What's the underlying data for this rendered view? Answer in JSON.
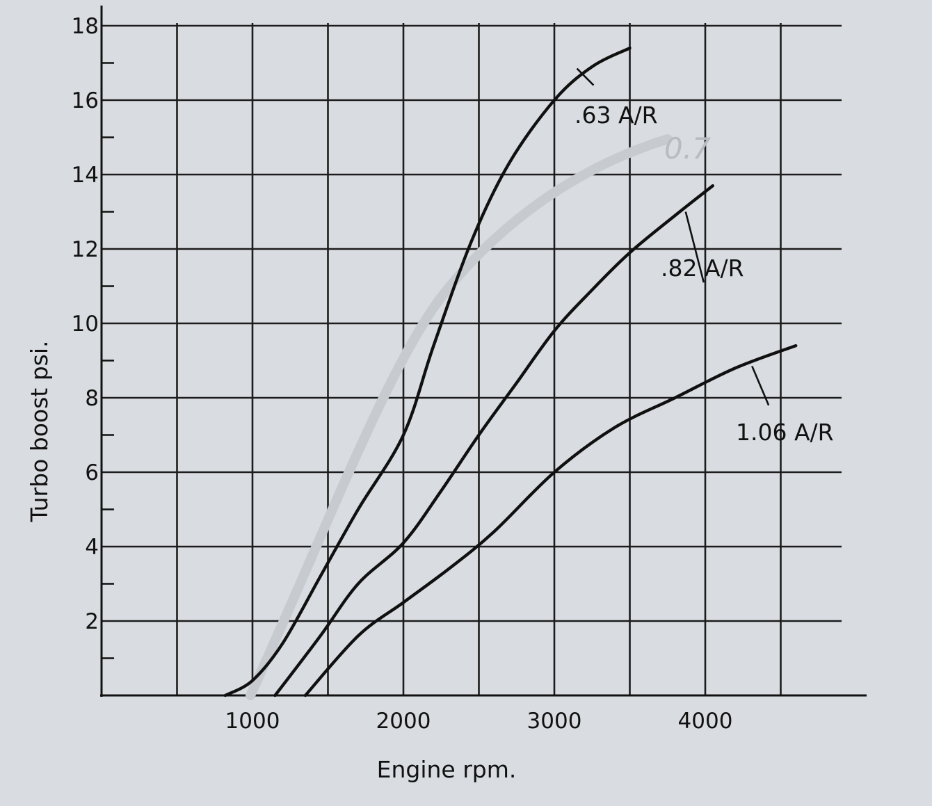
{
  "chart_data": {
    "type": "line",
    "title": "",
    "xlabel": "Engine rpm.",
    "ylabel": "Turbo boost psi.",
    "xlim": [
      0,
      4600
    ],
    "ylim": [
      0,
      18
    ],
    "x_ticks": [
      1000,
      2000,
      3000,
      4000
    ],
    "x_tick_labels": [
      "1000",
      "2000",
      "3000",
      "4000"
    ],
    "y_ticks": [
      2,
      4,
      6,
      8,
      10,
      12,
      14,
      16,
      18
    ],
    "y_tick_labels": [
      "2",
      "4",
      "6",
      "8",
      "10",
      "12",
      "14",
      "16",
      "18"
    ],
    "grid": true,
    "legend": "none",
    "series": [
      {
        "name": ".63 A/R",
        "x": [
          820,
          1000,
          1200,
          1450,
          1700,
          2000,
          2200,
          2450,
          2700,
          3000,
          3250,
          3500
        ],
        "y": [
          0,
          0.4,
          1.4,
          3.2,
          5.0,
          7.0,
          9.4,
          12.2,
          14.3,
          16.0,
          16.9,
          17.4
        ]
      },
      {
        "name": ".82 A/R",
        "x": [
          1150,
          1450,
          1700,
          2000,
          2250,
          2500,
          2750,
          3000,
          3250,
          3500,
          3800,
          4050
        ],
        "y": [
          0,
          1.6,
          3.0,
          4.1,
          5.5,
          7.0,
          8.4,
          9.8,
          10.9,
          11.9,
          12.9,
          13.7
        ]
      },
      {
        "name": "1.06 A/R",
        "x": [
          1350,
          1700,
          2000,
          2300,
          2600,
          3000,
          3400,
          3800,
          4200,
          4600
        ],
        "y": [
          0,
          1.6,
          2.5,
          3.4,
          4.4,
          6.0,
          7.2,
          8.0,
          8.8,
          9.4
        ]
      }
    ],
    "annotations": [
      ".63 A/R",
      ".82 A/R",
      "1.06 A/R"
    ],
    "handwritten_note": "0.7"
  }
}
